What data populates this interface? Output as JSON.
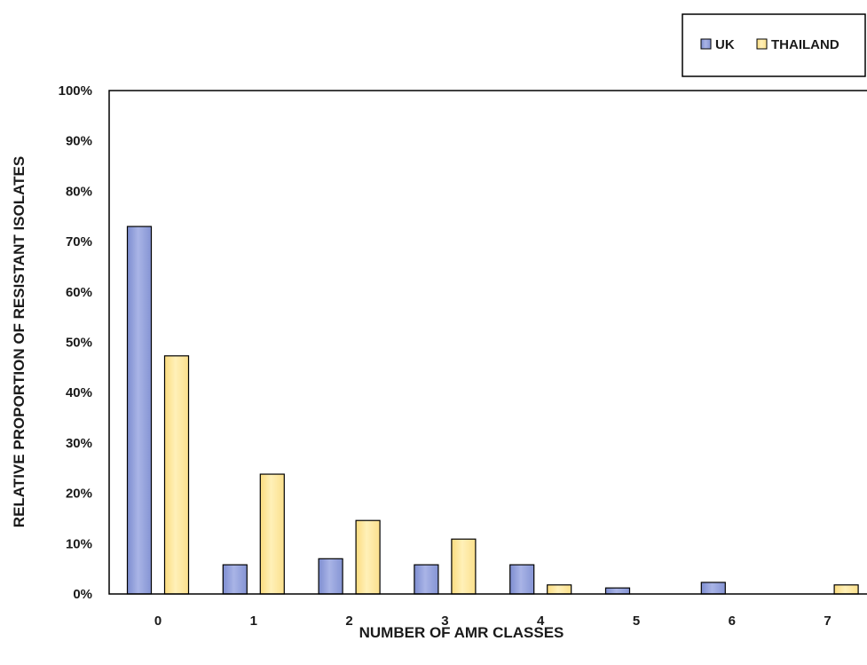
{
  "chart_data": {
    "type": "bar",
    "categories": [
      "0",
      "1",
      "2",
      "3",
      "4",
      "5",
      "6",
      "7"
    ],
    "series": [
      {
        "name": "UK",
        "values": [
          73,
          5.8,
          7,
          5.8,
          5.8,
          1.2,
          2.3,
          0
        ],
        "color": "#8e9cd8"
      },
      {
        "name": "THAILAND",
        "values": [
          47.3,
          23.8,
          14.6,
          10.9,
          1.8,
          0,
          0,
          1.8
        ],
        "color": "#fce394"
      }
    ],
    "xlabel": "NUMBER OF AMR CLASSES",
    "ylabel": "RELATIVE PROPORTION OF RESISTANT ISOLATES",
    "ylim": [
      0,
      100
    ],
    "yticks": [
      "0%",
      "10%",
      "20%",
      "30%",
      "40%",
      "50%",
      "60%",
      "70%",
      "80%",
      "90%",
      "100%"
    ],
    "grid": false,
    "legend_position": "top-right"
  }
}
